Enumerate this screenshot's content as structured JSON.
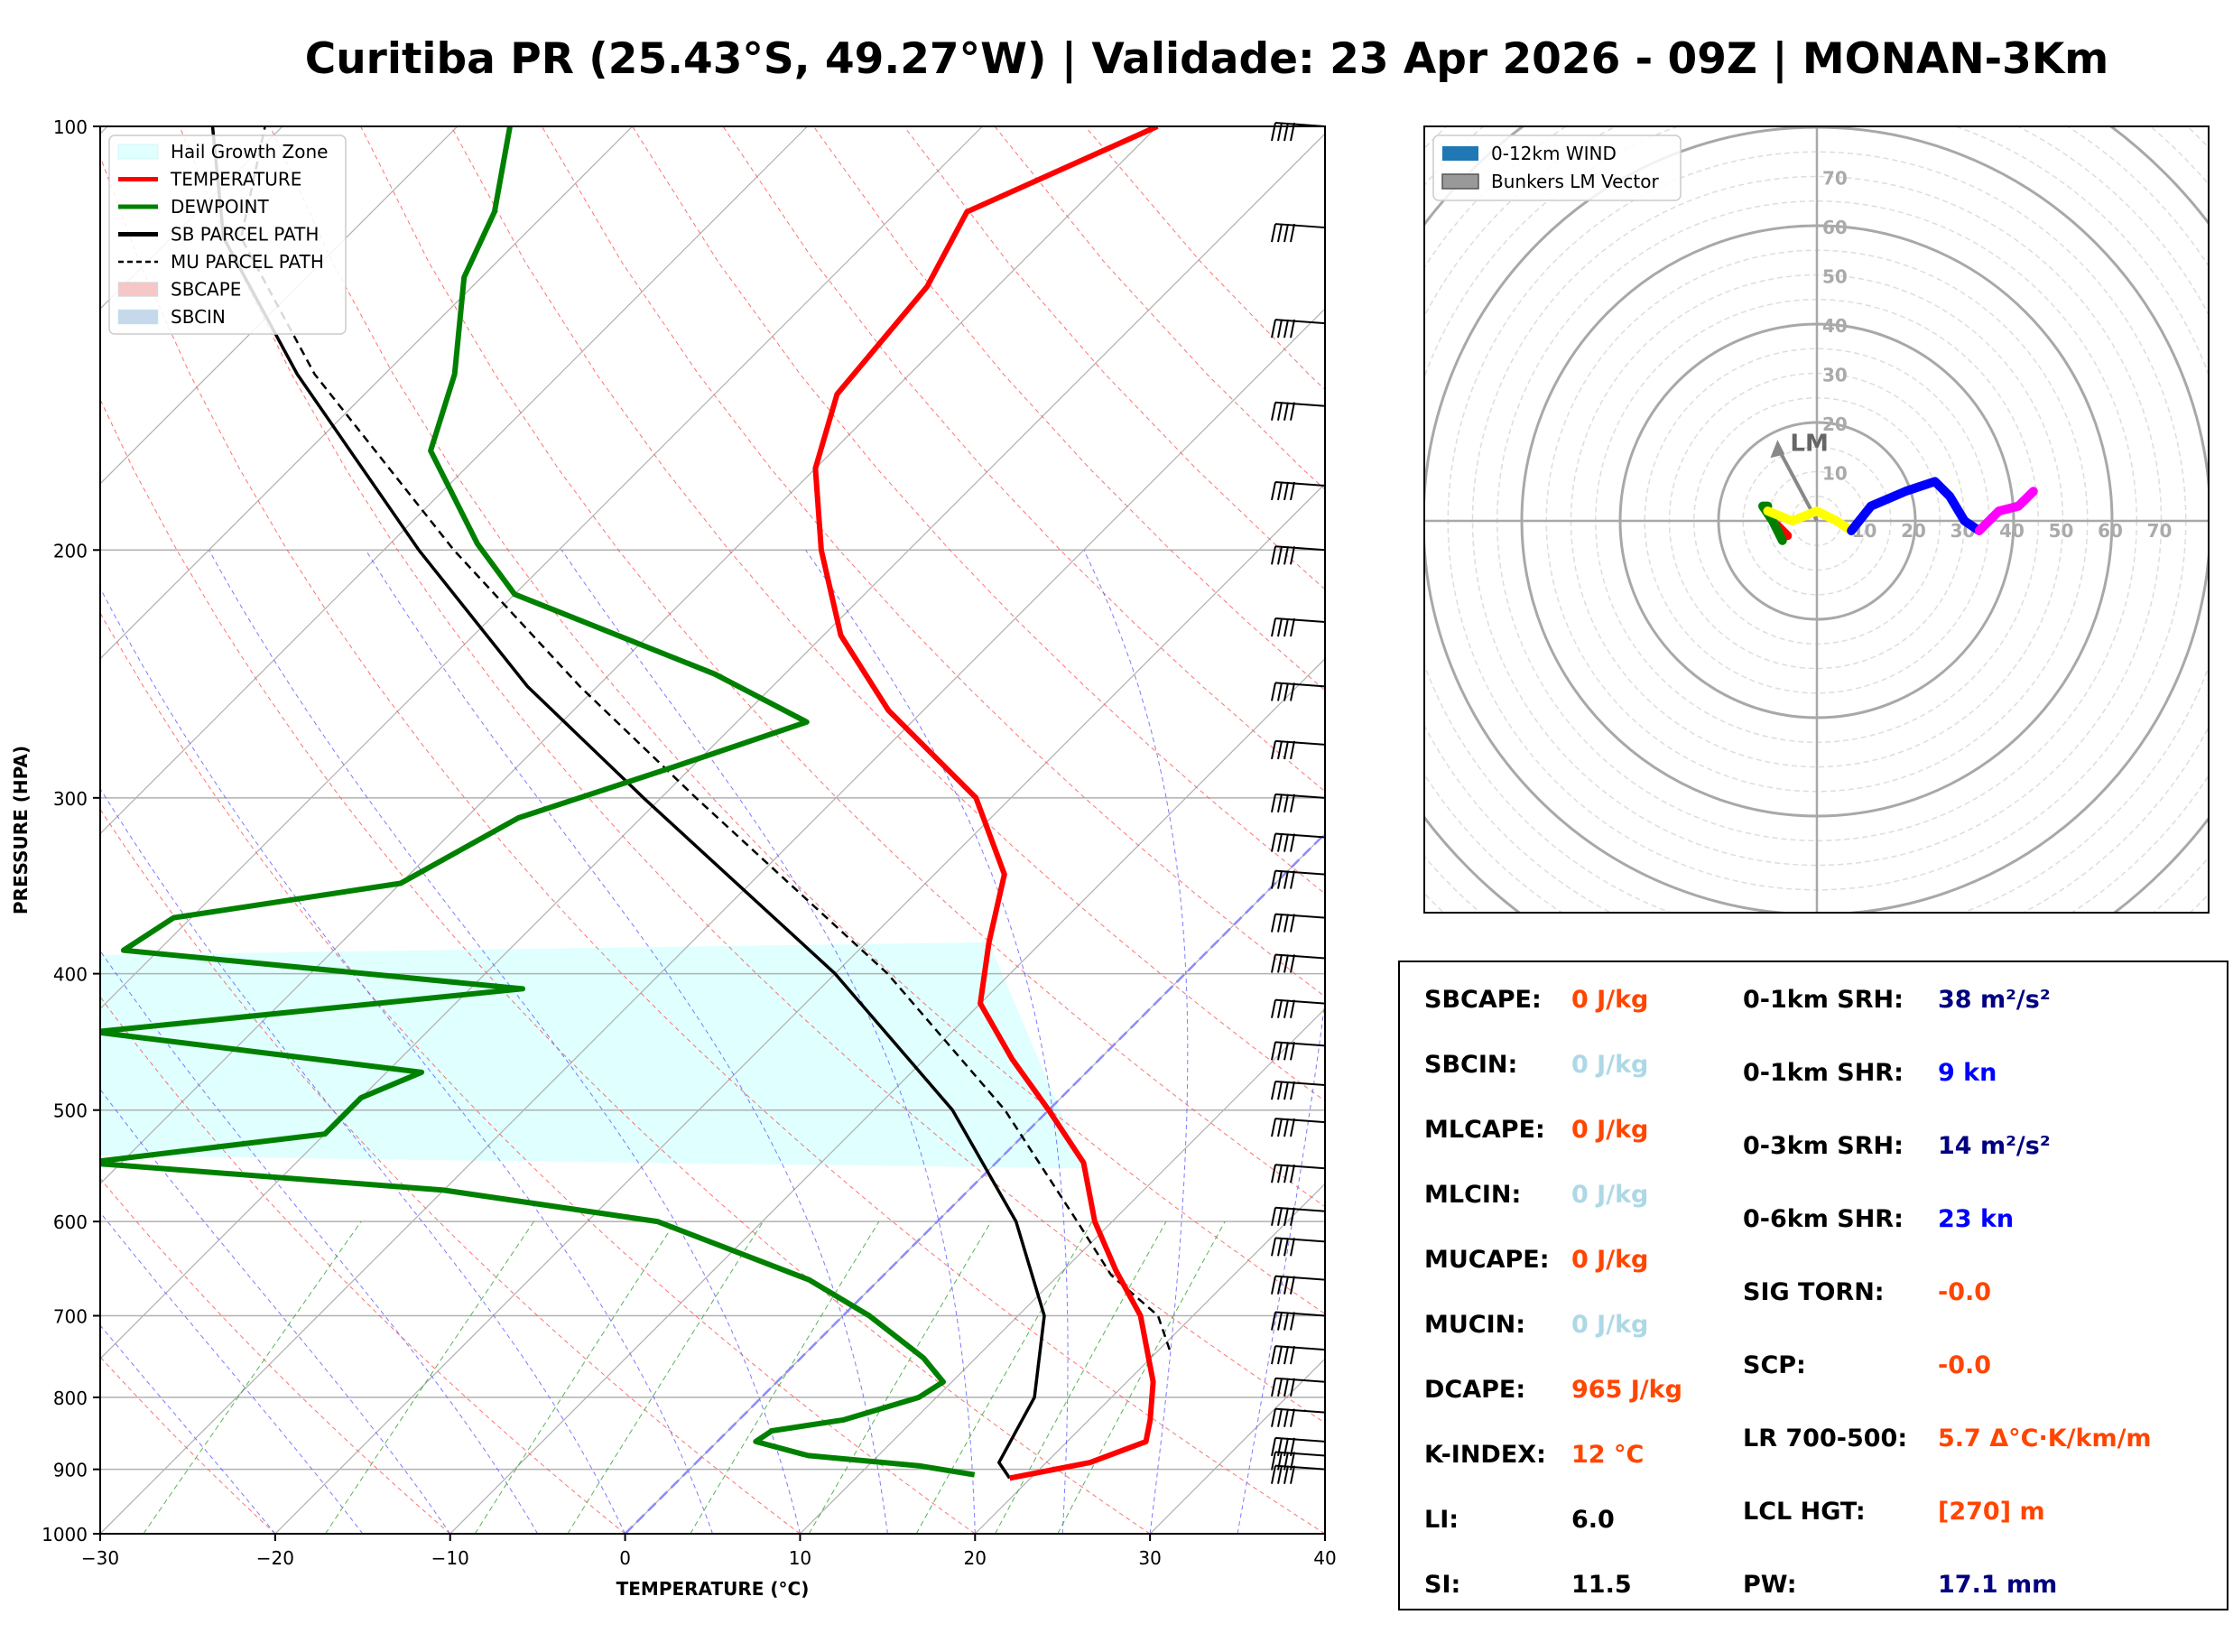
{
  "title": "Curitiba PR (25.43°S, 49.27°W) | Validade: 23 Apr 2026 - 09Z | MONAN-3Km",
  "colors": {
    "temperature": "#ff0000",
    "dewpoint": "#008000",
    "hail": "#e0ffff",
    "orange": "#ff4500",
    "lightblue": "#add8e6",
    "navy": "#000080",
    "blue": "#0000ff",
    "black": "#000000"
  },
  "chart_data": [
    {
      "type": "line",
      "name": "skew-t",
      "xlabel": "TEMPERATURE (°C)",
      "ylabel": "PRESSURE (HPA)",
      "xlim": [
        -30,
        40
      ],
      "ylim": [
        1000,
        100
      ],
      "xticks": [
        "−30",
        "−20",
        "−10",
        "0",
        "10",
        "20",
        "30",
        "40"
      ],
      "yticks": [
        "100",
        "200",
        "300",
        "400",
        "500",
        "600",
        "700",
        "800",
        "900",
        "1000"
      ],
      "legend": [
        {
          "label": "Hail Growth Zone",
          "style": "fill",
          "color": "#e0ffff"
        },
        {
          "label": "TEMPERATURE",
          "style": "line",
          "color": "#ff0000"
        },
        {
          "label": "DEWPOINT",
          "style": "line",
          "color": "#008000"
        },
        {
          "label": "SB PARCEL PATH",
          "style": "line",
          "color": "#000000"
        },
        {
          "label": "MU PARCEL PATH",
          "style": "dash",
          "color": "#000000"
        },
        {
          "label": "SBCAPE",
          "style": "fill",
          "color": "#f7c6c6"
        },
        {
          "label": "SBCIN",
          "style": "fill",
          "color": "#c6d9ec"
        }
      ],
      "temperature": [
        {
          "p": 913,
          "t": 18.8
        },
        {
          "p": 890,
          "t": 22.5
        },
        {
          "p": 860,
          "t": 24.5
        },
        {
          "p": 830,
          "t": 23.5
        },
        {
          "p": 780,
          "t": 21.5
        },
        {
          "p": 700,
          "t": 17
        },
        {
          "p": 650,
          "t": 13
        },
        {
          "p": 600,
          "t": 9
        },
        {
          "p": 545,
          "t": 5
        },
        {
          "p": 500,
          "t": 0
        },
        {
          "p": 460,
          "t": -5
        },
        {
          "p": 420,
          "t": -10
        },
        {
          "p": 380,
          "t": -13
        },
        {
          "p": 340,
          "t": -16
        },
        {
          "p": 300,
          "t": -22
        },
        {
          "p": 260,
          "t": -32
        },
        {
          "p": 230,
          "t": -39
        },
        {
          "p": 200,
          "t": -45
        },
        {
          "p": 175,
          "t": -50
        },
        {
          "p": 155,
          "t": -53
        },
        {
          "p": 130,
          "t": -54
        },
        {
          "p": 115,
          "t": -56
        },
        {
          "p": 100,
          "t": -50
        }
      ],
      "dewpoint": [
        {
          "p": 908,
          "t": 16.6
        },
        {
          "p": 895,
          "t": 13
        },
        {
          "p": 880,
          "t": 6
        },
        {
          "p": 860,
          "t": 2.2
        },
        {
          "p": 845,
          "t": 2.5
        },
        {
          "p": 830,
          "t": 6
        },
        {
          "p": 800,
          "t": 9
        },
        {
          "p": 780,
          "t": 9.5
        },
        {
          "p": 750,
          "t": 7
        },
        {
          "p": 700,
          "t": 1.5
        },
        {
          "p": 660,
          "t": -4
        },
        {
          "p": 600,
          "t": -16
        },
        {
          "p": 570,
          "t": -30
        },
        {
          "p": 545,
          "t": -52
        },
        {
          "p": 520,
          "t": -40
        },
        {
          "p": 490,
          "t": -40
        },
        {
          "p": 470,
          "t": -38
        },
        {
          "p": 440,
          "t": -59
        },
        {
          "p": 410,
          "t": -37
        },
        {
          "p": 385,
          "t": -62
        },
        {
          "p": 365,
          "t": -61
        },
        {
          "p": 345,
          "t": -50
        },
        {
          "p": 310,
          "t": -47
        },
        {
          "p": 285,
          "t": -41
        },
        {
          "p": 265,
          "t": -36
        },
        {
          "p": 245,
          "t": -44
        },
        {
          "p": 215,
          "t": -60
        },
        {
          "p": 198,
          "t": -65
        },
        {
          "p": 170,
          "t": -73
        },
        {
          "p": 150,
          "t": -76
        },
        {
          "p": 128,
          "t": -81
        },
        {
          "p": 115,
          "t": -83
        },
        {
          "p": 100,
          "t": -87
        }
      ],
      "sb_parcel": [
        {
          "p": 913,
          "t": 18.8
        },
        {
          "p": 890,
          "t": 17.3
        },
        {
          "p": 800,
          "t": 15.6
        },
        {
          "p": 700,
          "t": 11.5
        },
        {
          "p": 600,
          "t": 4.5
        },
        {
          "p": 500,
          "t": -5.5
        },
        {
          "p": 400,
          "t": -20
        },
        {
          "p": 300,
          "t": -41
        },
        {
          "p": 250,
          "t": -54
        },
        {
          "p": 200,
          "t": -68
        },
        {
          "p": 150,
          "t": -85
        },
        {
          "p": 120,
          "t": -97
        },
        {
          "p": 100,
          "t": -104
        }
      ],
      "mu_parcel": [
        {
          "p": 740,
          "t": 20.6
        },
        {
          "p": 700,
          "t": 18
        },
        {
          "p": 655,
          "t": 13
        },
        {
          "p": 600,
          "t": 8
        },
        {
          "p": 500,
          "t": -2.5
        },
        {
          "p": 400,
          "t": -17
        },
        {
          "p": 300,
          "t": -38
        },
        {
          "p": 250,
          "t": -51
        },
        {
          "p": 200,
          "t": -66
        },
        {
          "p": 150,
          "t": -84
        },
        {
          "p": 120,
          "t": -96
        },
        {
          "p": 100,
          "t": -101
        }
      ],
      "hail_growth_zone": {
        "p_bottom": 550,
        "p_top": 380
      },
      "wind_barbs_pressure": [
        100,
        118,
        138,
        158,
        180,
        200,
        225,
        250,
        275,
        300,
        320,
        340,
        365,
        390,
        420,
        450,
        480,
        510,
        550,
        590,
        620,
        660,
        700,
        740,
        780,
        820,
        860,
        880,
        900
      ]
    },
    {
      "type": "scatter",
      "name": "hodograph",
      "ring_labels": [
        "10",
        "20",
        "30",
        "40",
        "50",
        "60",
        "70"
      ],
      "range": [
        -80,
        80
      ],
      "legend": [
        {
          "label": "0-12km WIND",
          "color": "#1f77b4"
        },
        {
          "label": "Bunkers LM Vector",
          "color": "#999999"
        }
      ],
      "lm_label": "LM",
      "lm_vector": {
        "u": -8,
        "v": 15
      },
      "segments": [
        {
          "color": "#ff0000",
          "points": [
            {
              "u": -6,
              "v": -3
            },
            {
              "u": -8,
              "v": -1
            }
          ]
        },
        {
          "color": "#008000",
          "points": [
            {
              "u": -7,
              "v": -4
            },
            {
              "u": -9,
              "v": 0
            },
            {
              "u": -11,
              "v": 3
            },
            {
              "u": -10,
              "v": 3
            }
          ]
        },
        {
          "color": "#ffff00",
          "points": [
            {
              "u": -10,
              "v": 2
            },
            {
              "u": -5,
              "v": 0
            },
            {
              "u": 0,
              "v": 2
            },
            {
              "u": 4,
              "v": 0
            },
            {
              "u": 7,
              "v": -2
            }
          ]
        },
        {
          "color": "#0000ff",
          "points": [
            {
              "u": 7,
              "v": -2
            },
            {
              "u": 11,
              "v": 3
            },
            {
              "u": 18,
              "v": 6
            },
            {
              "u": 24,
              "v": 8
            },
            {
              "u": 27,
              "v": 5
            },
            {
              "u": 30,
              "v": 0
            },
            {
              "u": 33,
              "v": -2
            }
          ]
        },
        {
          "color": "#ff00ff",
          "points": [
            {
              "u": 33,
              "v": -2
            },
            {
              "u": 37,
              "v": 2
            },
            {
              "u": 41,
              "v": 3
            },
            {
              "u": 44,
              "v": 6
            }
          ]
        }
      ]
    }
  ],
  "params": {
    "left": [
      {
        "label": "SBCAPE:",
        "value": "0 J/kg",
        "color": "#ff4500"
      },
      {
        "label": "SBCIN:",
        "value": "0 J/kg",
        "color": "#add8e6"
      },
      {
        "label": "MLCAPE:",
        "value": "0 J/kg",
        "color": "#ff4500"
      },
      {
        "label": "MLCIN:",
        "value": "0 J/kg",
        "color": "#add8e6"
      },
      {
        "label": "MUCAPE:",
        "value": "0 J/kg",
        "color": "#ff4500"
      },
      {
        "label": "MUCIN:",
        "value": "0 J/kg",
        "color": "#add8e6"
      },
      {
        "label": "DCAPE:",
        "value": "965 J/kg",
        "color": "#ff4500"
      },
      {
        "label": "K-INDEX:",
        "value": "12 °C",
        "color": "#ff4500"
      },
      {
        "label": "LI:",
        "value": "6.0",
        "color": "#000000"
      },
      {
        "label": "SI:",
        "value": "11.5",
        "color": "#000000"
      }
    ],
    "right": [
      {
        "label": "0-1km SRH:",
        "value": "38 m²/s²",
        "color": "#000080"
      },
      {
        "label": "0-1km SHR:",
        "value": "9 kn",
        "color": "#0000ff"
      },
      {
        "label": "0-3km SRH:",
        "value": "14 m²/s²",
        "color": "#000080"
      },
      {
        "label": "0-6km SHR:",
        "value": "23 kn",
        "color": "#0000ff"
      },
      {
        "label": "SIG TORN:",
        "value": "-0.0",
        "color": "#ff4500"
      },
      {
        "label": "SCP:",
        "value": "-0.0",
        "color": "#ff4500"
      },
      {
        "label": "LR 700-500:",
        "value": "5.7 Δ°C·K/km/m",
        "color": "#ff4500"
      },
      {
        "label": "LCL HGT:",
        "value": "[270] m",
        "color": "#ff4500"
      },
      {
        "label": "PW:",
        "value": "17.1 mm",
        "color": "#000080"
      }
    ]
  }
}
